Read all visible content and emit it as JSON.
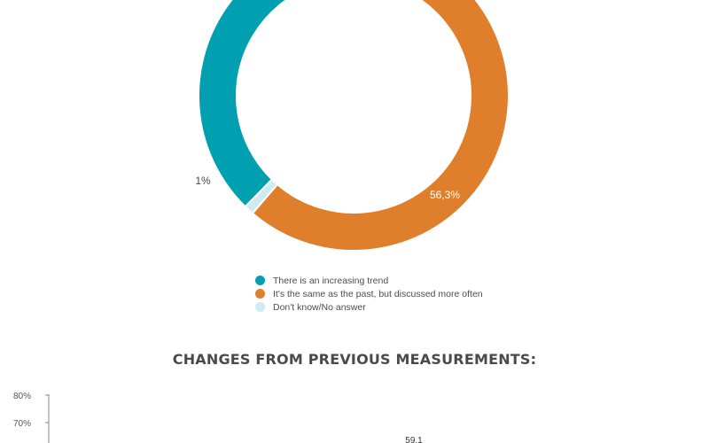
{
  "colors": {
    "increasing": "#00A0B0",
    "same": "#E07F2B",
    "dont_know": "#CDEBF1",
    "text": "#4a4a4a"
  },
  "chart_data": [
    {
      "type": "pie",
      "variant": "donut",
      "slices": [
        {
          "label": "There is an increasing trend",
          "value": 42.7,
          "color": "#00A0B0",
          "shown_label": ""
        },
        {
          "label": "It's the same as the past, but discussed more often",
          "value": 56.3,
          "color": "#E07F2B",
          "shown_label": "56,3%"
        },
        {
          "label": "Don't know/No answer",
          "value": 1.0,
          "color": "#CDEBF1",
          "shown_label": "1%"
        }
      ],
      "legend": [
        "There is an increasing trend",
        "It's the same as the past, but discussed more often",
        "Don't know/No answer"
      ],
      "legend_placement": "bottom"
    },
    {
      "type": "bar",
      "title": "CHANGES FROM PREVIOUS MEASUREMENTS:",
      "yticks": [
        "80%",
        "70%"
      ],
      "ylim": [
        50,
        80
      ],
      "visible_value_label": "59,1",
      "partially_visible": true
    }
  ]
}
